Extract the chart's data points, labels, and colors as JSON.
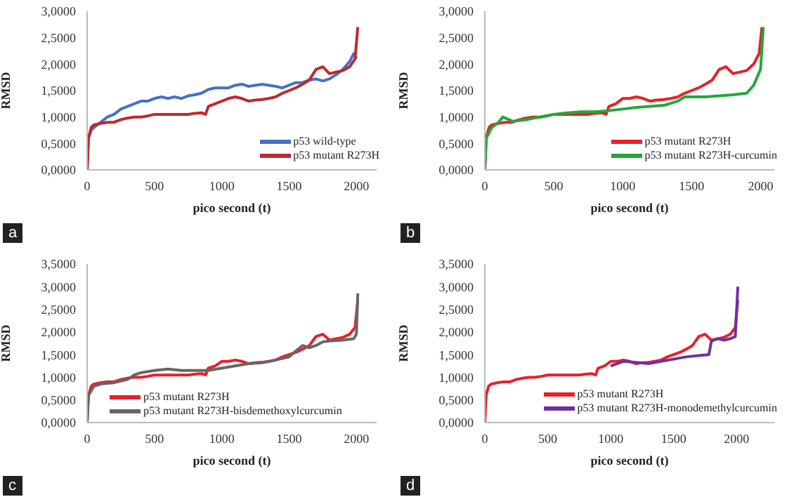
{
  "chart_data": [
    {
      "type": "line",
      "xlabel": "pico second (t)",
      "ylabel": "RMSD",
      "annotations": [
        "a"
      ],
      "legend": "bottom right",
      "marker": "none",
      "line_style": "solid",
      "grid": false,
      "xlim": [
        0,
        2150
      ],
      "xticks": [
        0,
        500,
        1000,
        1500,
        2000
      ],
      "ylim": [
        0,
        3
      ],
      "yticks": [
        {
          "value": 0,
          "label": "0,0000"
        },
        {
          "value": 0.5,
          "label": "0,5000"
        },
        {
          "value": 1,
          "label": "1,0000"
        },
        {
          "value": 1.5,
          "label": "1,5000"
        },
        {
          "value": 2,
          "label": "2,0000"
        },
        {
          "value": 2.5,
          "label": "2,5000"
        },
        {
          "value": 3,
          "label": "3,0000"
        }
      ],
      "series": [
        {
          "name": "p53 wild-type",
          "color": "#4472c4",
          "x": [
            0,
            10,
            30,
            50,
            100,
            150,
            200,
            250,
            300,
            350,
            400,
            450,
            500,
            550,
            600,
            650,
            700,
            750,
            800,
            850,
            900,
            950,
            1000,
            1050,
            1100,
            1150,
            1200,
            1250,
            1300,
            1350,
            1400,
            1450,
            1500,
            1550,
            1600,
            1650,
            1700,
            1750,
            1800,
            1850,
            1900,
            1950,
            1980,
            2000
          ],
          "values": [
            0,
            0.6,
            0.75,
            0.8,
            0.9,
            1.0,
            1.05,
            1.15,
            1.2,
            1.25,
            1.3,
            1.3,
            1.35,
            1.38,
            1.35,
            1.38,
            1.35,
            1.4,
            1.42,
            1.45,
            1.52,
            1.55,
            1.55,
            1.55,
            1.6,
            1.62,
            1.58,
            1.6,
            1.62,
            1.6,
            1.58,
            1.55,
            1.6,
            1.65,
            1.65,
            1.7,
            1.72,
            1.68,
            1.72,
            1.8,
            1.9,
            2.05,
            2.2,
            2.1
          ]
        },
        {
          "name": "p53 mutant R273H",
          "color": "#c0282d",
          "x": [
            0,
            10,
            30,
            50,
            100,
            150,
            200,
            250,
            300,
            350,
            400,
            450,
            500,
            550,
            600,
            650,
            700,
            750,
            800,
            850,
            880,
            900,
            950,
            1000,
            1050,
            1100,
            1150,
            1200,
            1250,
            1300,
            1350,
            1400,
            1450,
            1500,
            1550,
            1600,
            1650,
            1700,
            1750,
            1800,
            1850,
            1900,
            1950,
            1990,
            2010
          ],
          "values": [
            0,
            0.6,
            0.8,
            0.85,
            0.88,
            0.9,
            0.9,
            0.95,
            0.98,
            1.0,
            1.0,
            1.02,
            1.05,
            1.05,
            1.05,
            1.05,
            1.05,
            1.05,
            1.07,
            1.08,
            1.05,
            1.2,
            1.25,
            1.3,
            1.35,
            1.38,
            1.35,
            1.3,
            1.32,
            1.33,
            1.35,
            1.38,
            1.45,
            1.5,
            1.55,
            1.62,
            1.7,
            1.9,
            1.95,
            1.82,
            1.85,
            1.88,
            1.95,
            2.1,
            2.7
          ]
        }
      ]
    },
    {
      "type": "line",
      "xlabel": "pico second (t)",
      "ylabel": "RMSD",
      "annotations": [
        "b"
      ],
      "legend": "bottom right",
      "marker": "none",
      "line_style": "solid",
      "grid": false,
      "xlim": [
        0,
        2100
      ],
      "xticks": [
        0,
        500,
        1000,
        1500,
        2000
      ],
      "ylim": [
        0,
        3
      ],
      "yticks": [
        {
          "value": 0,
          "label": "0,0000"
        },
        {
          "value": 0.5,
          "label": "0,5000"
        },
        {
          "value": 1,
          "label": "1,0000"
        },
        {
          "value": 1.5,
          "label": "1,5000"
        },
        {
          "value": 2,
          "label": "2,0000"
        },
        {
          "value": 2.5,
          "label": "2,5000"
        },
        {
          "value": 3,
          "label": "3,0000"
        }
      ],
      "series": [
        {
          "name": "p53 mutant R273H",
          "color": "#e8202a",
          "x": [
            0,
            10,
            30,
            50,
            100,
            150,
            200,
            250,
            300,
            350,
            400,
            450,
            500,
            550,
            600,
            650,
            700,
            750,
            800,
            850,
            880,
            900,
            950,
            1000,
            1050,
            1100,
            1150,
            1200,
            1250,
            1300,
            1350,
            1400,
            1450,
            1500,
            1550,
            1600,
            1650,
            1700,
            1750,
            1800,
            1850,
            1900,
            1950,
            1990,
            2010
          ],
          "values": [
            0,
            0.6,
            0.8,
            0.85,
            0.88,
            0.9,
            0.9,
            0.95,
            0.98,
            1.0,
            1.0,
            1.02,
            1.05,
            1.05,
            1.05,
            1.05,
            1.05,
            1.05,
            1.07,
            1.08,
            1.05,
            1.2,
            1.25,
            1.35,
            1.35,
            1.38,
            1.35,
            1.3,
            1.32,
            1.33,
            1.35,
            1.38,
            1.45,
            1.5,
            1.55,
            1.62,
            1.7,
            1.9,
            1.95,
            1.82,
            1.85,
            1.88,
            2.0,
            2.2,
            2.7
          ]
        },
        {
          "name": "p53 mutant R273H-curcumin",
          "color": "#22a83a",
          "x": [
            0,
            10,
            50,
            100,
            130,
            200,
            300,
            400,
            500,
            600,
            700,
            800,
            900,
            1000,
            1100,
            1200,
            1300,
            1400,
            1450,
            1500,
            1600,
            1700,
            1800,
            1900,
            1950,
            2000,
            2020
          ],
          "values": [
            0,
            0.6,
            0.8,
            0.9,
            1.0,
            0.92,
            0.95,
            1.0,
            1.05,
            1.08,
            1.1,
            1.1,
            1.12,
            1.15,
            1.18,
            1.2,
            1.22,
            1.3,
            1.38,
            1.38,
            1.38,
            1.4,
            1.42,
            1.45,
            1.6,
            1.9,
            2.7
          ]
        }
      ]
    },
    {
      "type": "line",
      "xlabel": "pico second (t)",
      "ylabel": "RMSD",
      "annotations": [
        "c"
      ],
      "legend": "bottom",
      "marker": "none",
      "line_style": "solid",
      "grid": false,
      "xlim": [
        0,
        2150
      ],
      "xticks": [
        0,
        500,
        1000,
        1500,
        2000
      ],
      "ylim": [
        0,
        3.5
      ],
      "yticks": [
        {
          "value": 0,
          "label": "0,0000"
        },
        {
          "value": 0.5,
          "label": "0,5000"
        },
        {
          "value": 1,
          "label": "1,0000"
        },
        {
          "value": 1.5,
          "label": "1,5000"
        },
        {
          "value": 2,
          "label": "2,0000"
        },
        {
          "value": 2.5,
          "label": "2,5000"
        },
        {
          "value": 3,
          "label": "3,0000"
        },
        {
          "value": 3.5,
          "label": "3,5000"
        }
      ],
      "series": [
        {
          "name": "p53 mutant R273H",
          "color": "#e8202a",
          "x": [
            0,
            10,
            30,
            50,
            100,
            150,
            200,
            250,
            300,
            350,
            400,
            450,
            500,
            550,
            600,
            650,
            700,
            750,
            800,
            850,
            880,
            900,
            950,
            1000,
            1050,
            1100,
            1150,
            1200,
            1250,
            1300,
            1350,
            1400,
            1450,
            1500,
            1550,
            1600,
            1650,
            1700,
            1750,
            1800,
            1850,
            1900,
            1950,
            1990,
            2010
          ],
          "values": [
            0,
            0.6,
            0.8,
            0.85,
            0.88,
            0.9,
            0.9,
            0.95,
            0.98,
            1.0,
            1.0,
            1.02,
            1.05,
            1.05,
            1.05,
            1.05,
            1.05,
            1.05,
            1.07,
            1.08,
            1.05,
            1.2,
            1.25,
            1.35,
            1.35,
            1.38,
            1.35,
            1.3,
            1.32,
            1.33,
            1.35,
            1.38,
            1.45,
            1.5,
            1.55,
            1.62,
            1.7,
            1.9,
            1.95,
            1.82,
            1.85,
            1.88,
            1.95,
            2.1,
            2.7
          ]
        },
        {
          "name": "p53 mutant R273H-bisdemethoxylcurcumin",
          "color": "#666666",
          "x": [
            0,
            10,
            50,
            100,
            200,
            300,
            350,
            400,
            500,
            600,
            700,
            800,
            900,
            1000,
            1100,
            1200,
            1300,
            1400,
            1500,
            1550,
            1600,
            1650,
            1700,
            1750,
            1800,
            1900,
            1980,
            2000,
            2010
          ],
          "values": [
            0,
            0.6,
            0.8,
            0.85,
            0.88,
            0.95,
            1.05,
            1.1,
            1.15,
            1.18,
            1.15,
            1.15,
            1.15,
            1.2,
            1.25,
            1.3,
            1.32,
            1.38,
            1.45,
            1.58,
            1.7,
            1.65,
            1.7,
            1.78,
            1.8,
            1.82,
            1.85,
            1.95,
            2.85
          ]
        }
      ]
    },
    {
      "type": "line",
      "xlabel": "pico second (t)",
      "ylabel": "RMSD",
      "annotations": [
        "d"
      ],
      "legend": "bottom right",
      "marker": "none",
      "line_style": "solid",
      "grid": false,
      "xlim": [
        0,
        2300
      ],
      "xticks": [
        0,
        500,
        1000,
        1500,
        2000
      ],
      "ylim": [
        0,
        3.5
      ],
      "yticks": [
        {
          "value": 0,
          "label": "0,0000"
        },
        {
          "value": 0.5,
          "label": "0,5000"
        },
        {
          "value": 1,
          "label": "1,0000"
        },
        {
          "value": 1.5,
          "label": "1,5000"
        },
        {
          "value": 2,
          "label": "2,0000"
        },
        {
          "value": 2.5,
          "label": "2,5000"
        },
        {
          "value": 3,
          "label": "3,0000"
        },
        {
          "value": 3.5,
          "label": "3,5000"
        }
      ],
      "series": [
        {
          "name": "p53 mutant R273H",
          "color": "#e8202a",
          "x": [
            0,
            10,
            30,
            50,
            100,
            150,
            200,
            250,
            300,
            350,
            400,
            450,
            500,
            550,
            600,
            650,
            700,
            750,
            800,
            850,
            880,
            900,
            950,
            1000,
            1050,
            1100,
            1150,
            1200,
            1250,
            1300,
            1350,
            1400,
            1450,
            1500,
            1550,
            1600,
            1650,
            1700,
            1750,
            1800,
            1850,
            1900,
            1950,
            1990,
            2010
          ],
          "values": [
            0,
            0.6,
            0.8,
            0.85,
            0.88,
            0.9,
            0.9,
            0.95,
            0.98,
            1.0,
            1.0,
            1.02,
            1.05,
            1.05,
            1.05,
            1.05,
            1.05,
            1.05,
            1.07,
            1.08,
            1.05,
            1.2,
            1.25,
            1.35,
            1.35,
            1.38,
            1.35,
            1.3,
            1.32,
            1.33,
            1.35,
            1.38,
            1.45,
            1.5,
            1.55,
            1.62,
            1.7,
            1.9,
            1.95,
            1.82,
            1.85,
            1.88,
            1.95,
            2.1,
            2.7
          ]
        },
        {
          "name": "p53 mutant R273H-monodemethylcurcumin",
          "color": "#7030a0",
          "x": [
            1000,
            1100,
            1200,
            1300,
            1400,
            1500,
            1600,
            1700,
            1780,
            1800,
            1850,
            1900,
            1950,
            1990,
            2010
          ],
          "values": [
            1.25,
            1.35,
            1.33,
            1.3,
            1.35,
            1.4,
            1.45,
            1.48,
            1.5,
            1.8,
            1.85,
            1.82,
            1.85,
            1.9,
            3.0
          ]
        }
      ]
    }
  ]
}
